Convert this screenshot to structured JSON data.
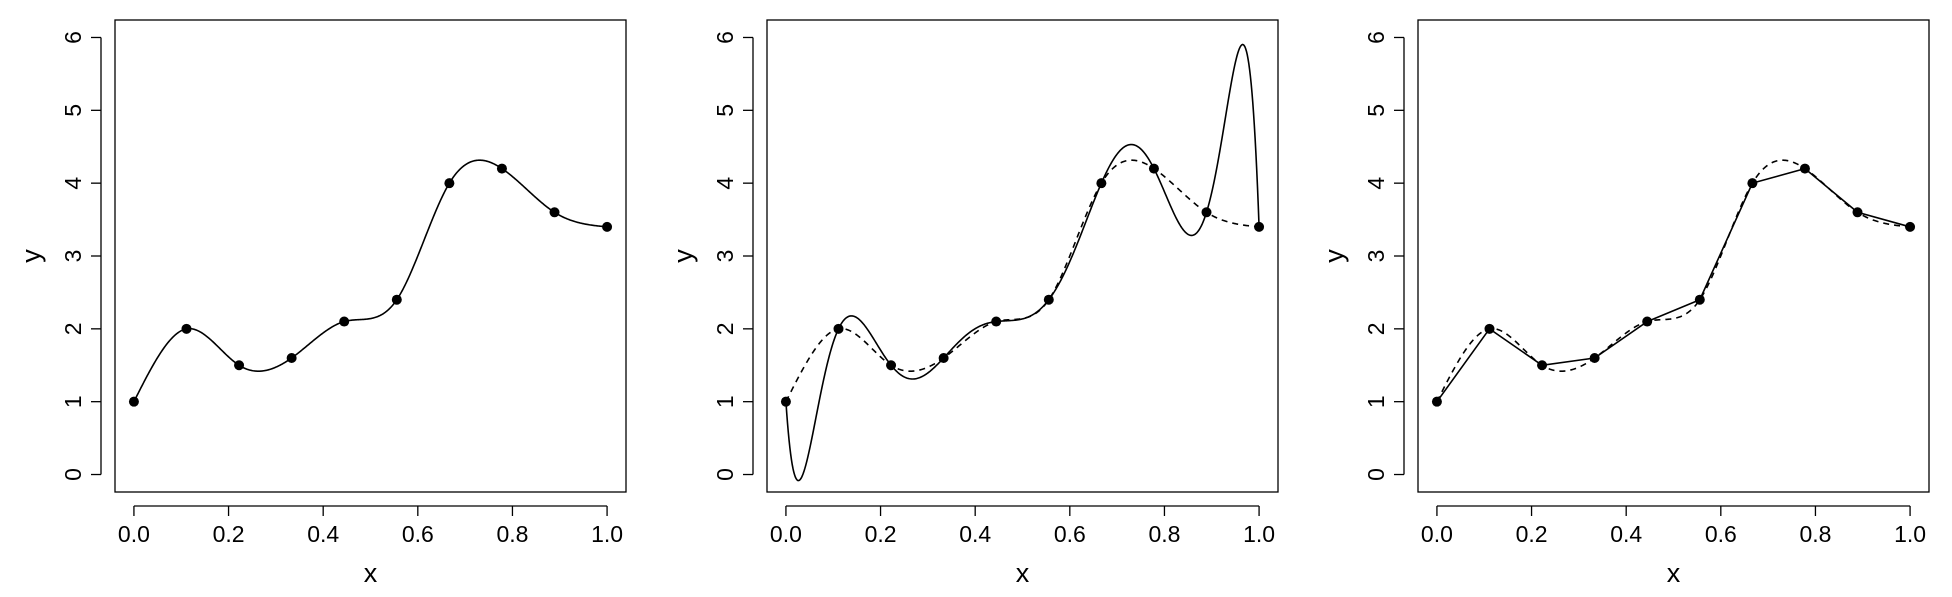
{
  "chart_data": [
    {
      "type": "line",
      "panel": "left",
      "xlabel": "x",
      "ylabel": "y",
      "xlim": [
        0.0,
        1.0
      ],
      "ylim": [
        0,
        6
      ],
      "x_ticks": [
        "0.0",
        "0.2",
        "0.4",
        "0.6",
        "0.8",
        "1.0"
      ],
      "y_ticks": [
        "0",
        "1",
        "2",
        "3",
        "4",
        "5",
        "6"
      ],
      "grid": false,
      "points": {
        "x": [
          0.0,
          0.1111,
          0.2222,
          0.3333,
          0.4444,
          0.5556,
          0.6667,
          0.7778,
          0.8889,
          1.0
        ],
        "y": [
          1.0,
          2.0,
          1.5,
          1.6,
          2.1,
          2.4,
          4.0,
          4.2,
          3.6,
          3.4
        ]
      },
      "series": [
        {
          "style": "solid",
          "curve": "smooth_spline"
        }
      ]
    },
    {
      "type": "line",
      "panel": "middle",
      "xlabel": "x",
      "ylabel": "y",
      "xlim": [
        0.0,
        1.0
      ],
      "ylim": [
        0,
        6
      ],
      "x_ticks": [
        "0.0",
        "0.2",
        "0.4",
        "0.6",
        "0.8",
        "1.0"
      ],
      "y_ticks": [
        "0",
        "1",
        "2",
        "3",
        "4",
        "5",
        "6"
      ],
      "grid": false,
      "points": {
        "x": [
          0.0,
          0.1111,
          0.2222,
          0.3333,
          0.4444,
          0.5556,
          0.6667,
          0.7778,
          0.8889,
          1.0
        ],
        "y": [
          1.0,
          2.0,
          1.5,
          1.6,
          2.1,
          2.4,
          4.0,
          4.2,
          3.6,
          3.4
        ]
      },
      "series": [
        {
          "style": "solid",
          "curve": "interpolating_polynomial",
          "extremes": {
            "min": {
              "x": 0.03,
              "y": -0.08
            },
            "max": {
              "x": 0.965,
              "y": 5.9
            }
          }
        },
        {
          "style": "dashed",
          "curve": "smooth_spline"
        }
      ]
    },
    {
      "type": "line",
      "panel": "right",
      "xlabel": "x",
      "ylabel": "y",
      "xlim": [
        0.0,
        1.0
      ],
      "ylim": [
        0,
        6
      ],
      "x_ticks": [
        "0.0",
        "0.2",
        "0.4",
        "0.6",
        "0.8",
        "1.0"
      ],
      "y_ticks": [
        "0",
        "1",
        "2",
        "3",
        "4",
        "5",
        "6"
      ],
      "grid": false,
      "points": {
        "x": [
          0.0,
          0.1111,
          0.2222,
          0.3333,
          0.4444,
          0.5556,
          0.6667,
          0.7778,
          0.8889,
          1.0
        ],
        "y": [
          1.0,
          2.0,
          1.5,
          1.6,
          2.1,
          2.4,
          4.0,
          4.2,
          3.6,
          3.4
        ]
      },
      "series": [
        {
          "style": "solid",
          "curve": "piecewise_linear"
        },
        {
          "style": "dashed",
          "curve": "smooth_spline"
        }
      ]
    }
  ]
}
